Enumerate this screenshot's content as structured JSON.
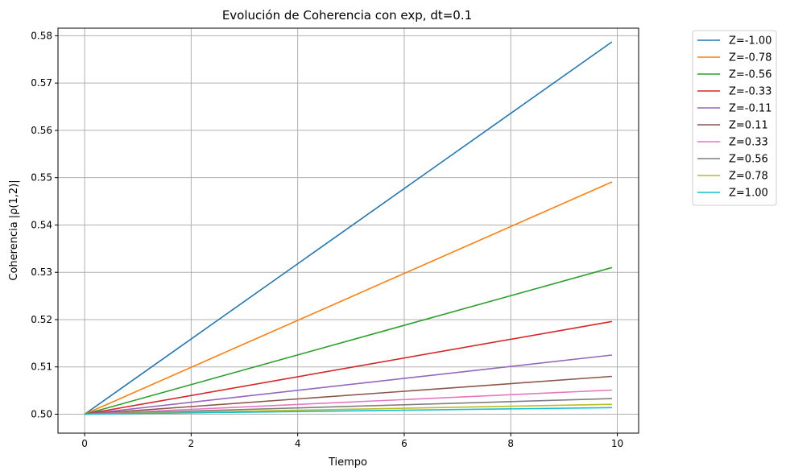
{
  "chart_data": {
    "type": "line",
    "title": "Evolución de Coherencia con exp, dt=0.1",
    "xlabel": "Tiempo",
    "ylabel": "Coherencia |ρ(1,2)|",
    "xlim": [
      -0.5,
      10.4
    ],
    "ylim": [
      0.496,
      0.5816
    ],
    "xticks": [
      0,
      2,
      4,
      6,
      8,
      10
    ],
    "yticks": [
      0.5,
      0.51,
      0.52,
      0.53,
      0.54,
      0.55,
      0.56,
      0.57,
      0.58
    ],
    "xtick_labels": [
      "0",
      "2",
      "4",
      "6",
      "8",
      "10"
    ],
    "ytick_labels": [
      "0.50",
      "0.51",
      "0.52",
      "0.53",
      "0.54",
      "0.55",
      "0.56",
      "0.57",
      "0.58"
    ],
    "grid": true,
    "legend_position": "outside-top-right",
    "series": [
      {
        "name": "Z=-1.00",
        "color": "#1f77b4",
        "x": [
          0,
          9.9
        ],
        "values": [
          0.5,
          0.5787
        ]
      },
      {
        "name": "Z=-0.78",
        "color": "#ff7f0e",
        "x": [
          0,
          9.9
        ],
        "values": [
          0.5,
          0.5491
        ]
      },
      {
        "name": "Z=-0.56",
        "color": "#2ca02c",
        "x": [
          0,
          9.9
        ],
        "values": [
          0.5,
          0.531
        ]
      },
      {
        "name": "Z=-0.33",
        "color": "#d62728",
        "x": [
          0,
          9.9
        ],
        "values": [
          0.5,
          0.5196
        ]
      },
      {
        "name": "Z=-0.11",
        "color": "#9467bd",
        "x": [
          0,
          9.9
        ],
        "values": [
          0.5,
          0.5125
        ]
      },
      {
        "name": "Z=0.11",
        "color": "#8c564b",
        "x": [
          0,
          9.9
        ],
        "values": [
          0.5,
          0.508
        ]
      },
      {
        "name": "Z=0.33",
        "color": "#e377c2",
        "x": [
          0,
          9.9
        ],
        "values": [
          0.5,
          0.5051
        ]
      },
      {
        "name": "Z=0.56",
        "color": "#7f7f7f",
        "x": [
          0,
          9.9
        ],
        "values": [
          0.5,
          0.5033
        ]
      },
      {
        "name": "Z=0.78",
        "color": "#bcbd22",
        "x": [
          0,
          9.9
        ],
        "values": [
          0.5,
          0.5021
        ]
      },
      {
        "name": "Z=1.00",
        "color": "#17becf",
        "x": [
          0,
          9.9
        ],
        "values": [
          0.5,
          0.5014
        ]
      }
    ]
  }
}
